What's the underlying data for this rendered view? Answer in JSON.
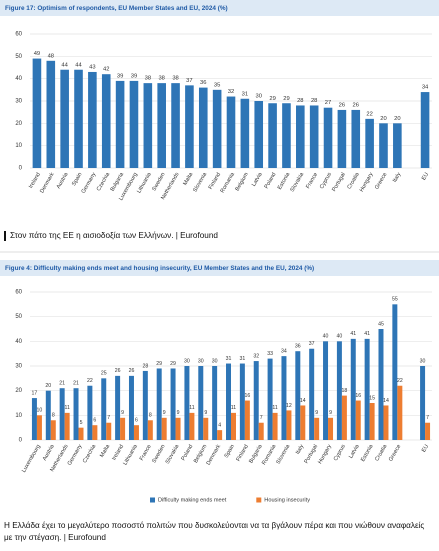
{
  "chart_data": [
    {
      "type": "bar",
      "title": "Figure 17: Optimism of respondents, EU Member States and EU, 2024 (%)",
      "categories": [
        "Ireland",
        "Denmark",
        "Austria",
        "Spain",
        "Germany",
        "Czechia",
        "Bulgaria",
        "Luxembourg",
        "Lithuania",
        "Sweden",
        "Netherlands",
        "Malta",
        "Slovenia",
        "Finland",
        "Romania",
        "Belgium",
        "Latvia",
        "Poland",
        "Estonia",
        "Slovakia",
        "France",
        "Cyprus",
        "Portugal",
        "Croatia",
        "Hungary",
        "Greece",
        "Italy",
        "EU"
      ],
      "values": [
        49,
        48,
        44,
        44,
        43,
        42,
        39,
        39,
        38,
        38,
        38,
        37,
        36,
        35,
        32,
        31,
        30,
        29,
        29,
        28,
        28,
        27,
        26,
        26,
        22,
        20,
        20,
        34
      ],
      "color": "#2e75b6",
      "ylim": [
        0,
        60
      ],
      "yticks": [
        0,
        10,
        20,
        30,
        40,
        50,
        60
      ],
      "grid": true
    },
    {
      "type": "grouped_bar",
      "title": "Figure 4: Difficulty making ends meet and housing insecurity, EU Member States and the EU, 2024 (%)",
      "categories": [
        "Luxembourg",
        "Austria",
        "Netherlands",
        "Germany",
        "Czechia",
        "Malta",
        "Ireland",
        "Lithuania",
        "France",
        "Sweden",
        "Slovakia",
        "Poland",
        "Belgium",
        "Denmark",
        "Spain",
        "Finland",
        "Bulgaria",
        "Romania",
        "Slovenia",
        "Italy",
        "Portugal",
        "Hungary",
        "Cyprus",
        "Latvia",
        "Estonia",
        "Croatia",
        "Greece",
        "EU"
      ],
      "series": [
        {
          "name": "Difficulty making ends meet",
          "color": "#2e75b6",
          "values": [
            17,
            20,
            21,
            21,
            22,
            25,
            26,
            26,
            28,
            29,
            29,
            30,
            30,
            30,
            31,
            31,
            32,
            33,
            34,
            36,
            37,
            40,
            40,
            41,
            41,
            45,
            55,
            30
          ]
        },
        {
          "name": "Housing insecurity",
          "color": "#ed7d31",
          "values": [
            10,
            8,
            11,
            5,
            6,
            7,
            9,
            6,
            8,
            9,
            9,
            11,
            9,
            4,
            11,
            16,
            7,
            11,
            12,
            14,
            9,
            9,
            18,
            16,
            15,
            14,
            22,
            7
          ]
        }
      ],
      "ylim": [
        0,
        60
      ],
      "yticks": [
        0,
        10,
        20,
        30,
        40,
        50,
        60
      ],
      "grid": true,
      "legend": "bottom"
    }
  ],
  "captions": [
    "Στον πάτο της ΕΕ η αισιοδοξία των Ελλήνων. | Eurofound",
    "Η Ελλάδα έχει το μεγαλύτερο ποσοστό πολιτών που δυσκολεύονται να τα βγάλουν πέρα και που νιώθουν αναφαλείς με την στέγαση. | Eurofound"
  ]
}
